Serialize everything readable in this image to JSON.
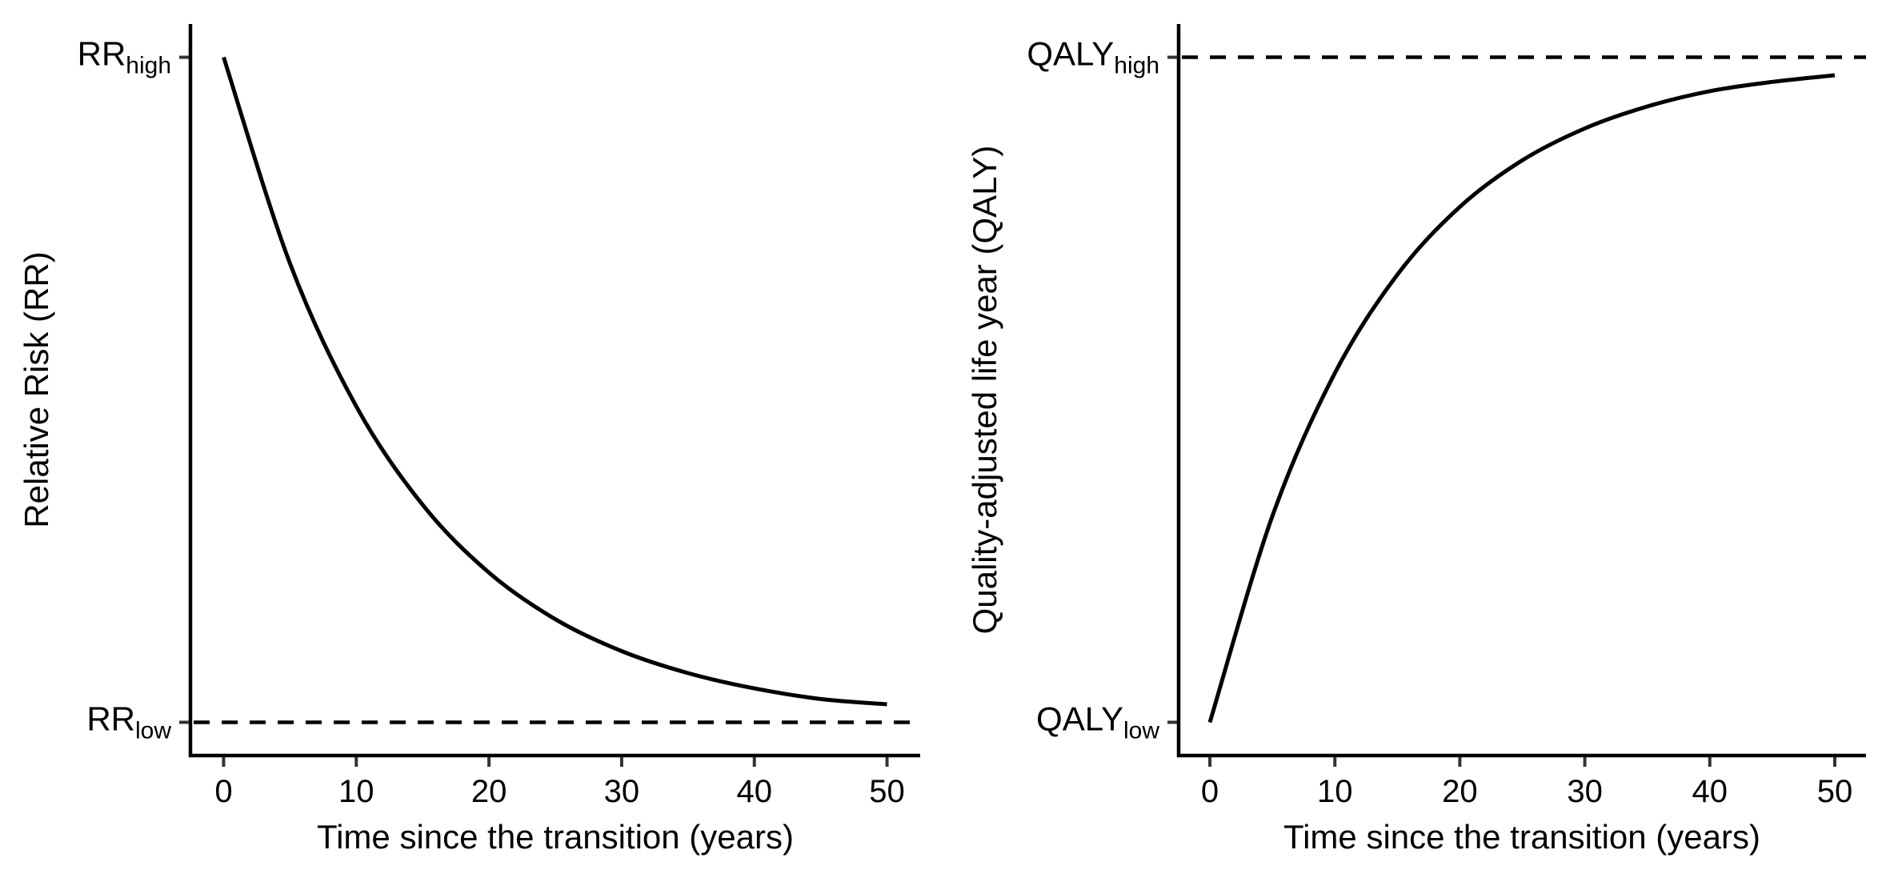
{
  "chart_data": [
    {
      "type": "line",
      "xlabel": "Time since the transition (years)",
      "ylabel": "Relative Risk (RR)",
      "x_ticks": [
        "0",
        "10",
        "20",
        "30",
        "40",
        "50"
      ],
      "xlim": [
        -2.5,
        52.5
      ],
      "ylim": [
        -0.05,
        1.05
      ],
      "y_tick_labels": [
        {
          "main": "RR",
          "sub": "high",
          "value": 1
        },
        {
          "main": "RR",
          "sub": "low",
          "value": 0
        }
      ],
      "asymptote": {
        "style": "dashed",
        "value": 0,
        "x_range": [
          -2.5,
          52.5
        ]
      },
      "series": [
        {
          "x": [
            0,
            5,
            10,
            15,
            20,
            25,
            30,
            35,
            40,
            45,
            50
          ],
          "y": [
            1.0,
            0.69,
            0.475,
            0.327,
            0.225,
            0.155,
            0.107,
            0.074,
            0.051,
            0.035,
            0.027
          ]
        }
      ],
      "grid": false
    },
    {
      "type": "line",
      "xlabel": "Time since the transition (years)",
      "ylabel": "Quality-adjusted life year (QALY)",
      "x_ticks": [
        "0",
        "10",
        "20",
        "30",
        "40",
        "50"
      ],
      "xlim": [
        -2.5,
        52.5
      ],
      "ylim": [
        -0.05,
        1.05
      ],
      "y_tick_labels": [
        {
          "main": "QALY",
          "sub": "high",
          "value": 1
        },
        {
          "main": "QALY",
          "sub": "low",
          "value": 0
        }
      ],
      "asymptote": {
        "style": "dashed",
        "value": 1,
        "x_range": [
          -2.5,
          52.5
        ]
      },
      "series": [
        {
          "x": [
            0,
            5,
            10,
            15,
            20,
            25,
            30,
            35,
            40,
            45,
            50
          ],
          "y": [
            0.0,
            0.31,
            0.525,
            0.673,
            0.775,
            0.845,
            0.893,
            0.926,
            0.949,
            0.963,
            0.973
          ]
        }
      ],
      "grid": false
    }
  ]
}
